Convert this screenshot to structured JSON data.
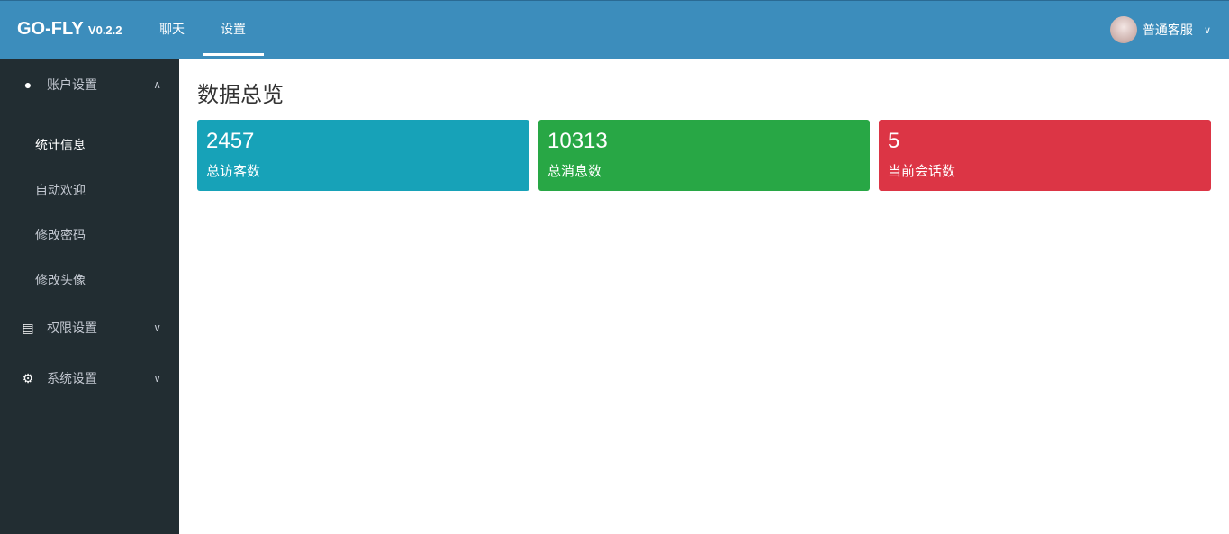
{
  "header": {
    "logo": "GO-FLY",
    "version": "V0.2.2",
    "nav": [
      "聊天",
      "设置"
    ],
    "active_nav": 1,
    "user_name": "普通客服"
  },
  "sidebar": {
    "groups": [
      {
        "label": "账户设置",
        "icon": "user-icon",
        "expanded": true,
        "items": [
          "统计信息",
          "自动欢迎",
          "修改密码",
          "修改头像"
        ],
        "active": 0
      },
      {
        "label": "权限设置",
        "icon": "briefcase-icon"
      },
      {
        "label": "系统设置",
        "icon": "gear-icon"
      }
    ]
  },
  "main": {
    "title": "数据总览",
    "cards": [
      {
        "value": "2457",
        "label": "总访客数",
        "color": "#17a2b8"
      },
      {
        "value": "10313",
        "label": "总消息数",
        "color": "#28a745"
      },
      {
        "value": "5",
        "label": "当前会话数",
        "color": "#dc3545"
      }
    ]
  }
}
